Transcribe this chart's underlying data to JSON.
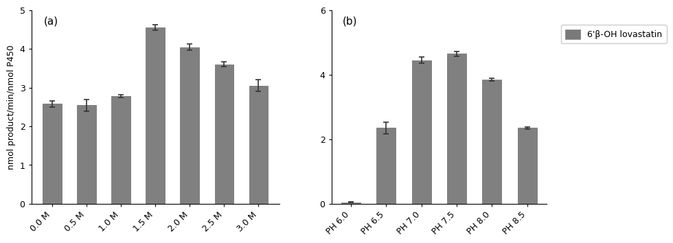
{
  "panel_a": {
    "categories": [
      "0.0 M",
      "0.5 M",
      "1.0 M",
      "1.5 M",
      "2.0 M",
      "2.5 M",
      "3.0 M"
    ],
    "values": [
      2.58,
      2.55,
      2.78,
      4.55,
      4.05,
      3.6,
      3.05
    ],
    "errors": [
      0.08,
      0.15,
      0.04,
      0.07,
      0.08,
      0.06,
      0.15
    ],
    "ylim": [
      0,
      5
    ],
    "yticks": [
      0,
      1,
      2,
      3,
      4,
      5
    ],
    "label": "(a)"
  },
  "panel_b": {
    "categories": [
      "PH 6.0",
      "PH 6.5",
      "PH 7.0",
      "PH 7.5",
      "PH 8.0",
      "PH 8.5"
    ],
    "values": [
      0.05,
      2.35,
      4.45,
      4.65,
      3.85,
      2.35
    ],
    "errors": [
      0.02,
      0.18,
      0.1,
      0.08,
      0.04,
      0.04
    ],
    "ylim": [
      0,
      6
    ],
    "yticks": [
      0,
      2,
      4,
      6
    ],
    "label": "(b)"
  },
  "bar_color": "#808080",
  "bar_edge_color": "#696969",
  "ylabel": "nmol product/min/nmol P450",
  "legend_label": "6'β-OH lovastatin",
  "legend_color": "#7a7a7a",
  "panel_label_fontsize": 11,
  "tick_fontsize": 9,
  "label_fontsize": 9,
  "bar_width": 0.55,
  "ecolor": "#333333",
  "capsize": 3,
  "capthick": 1.2,
  "elinewidth": 1.2
}
